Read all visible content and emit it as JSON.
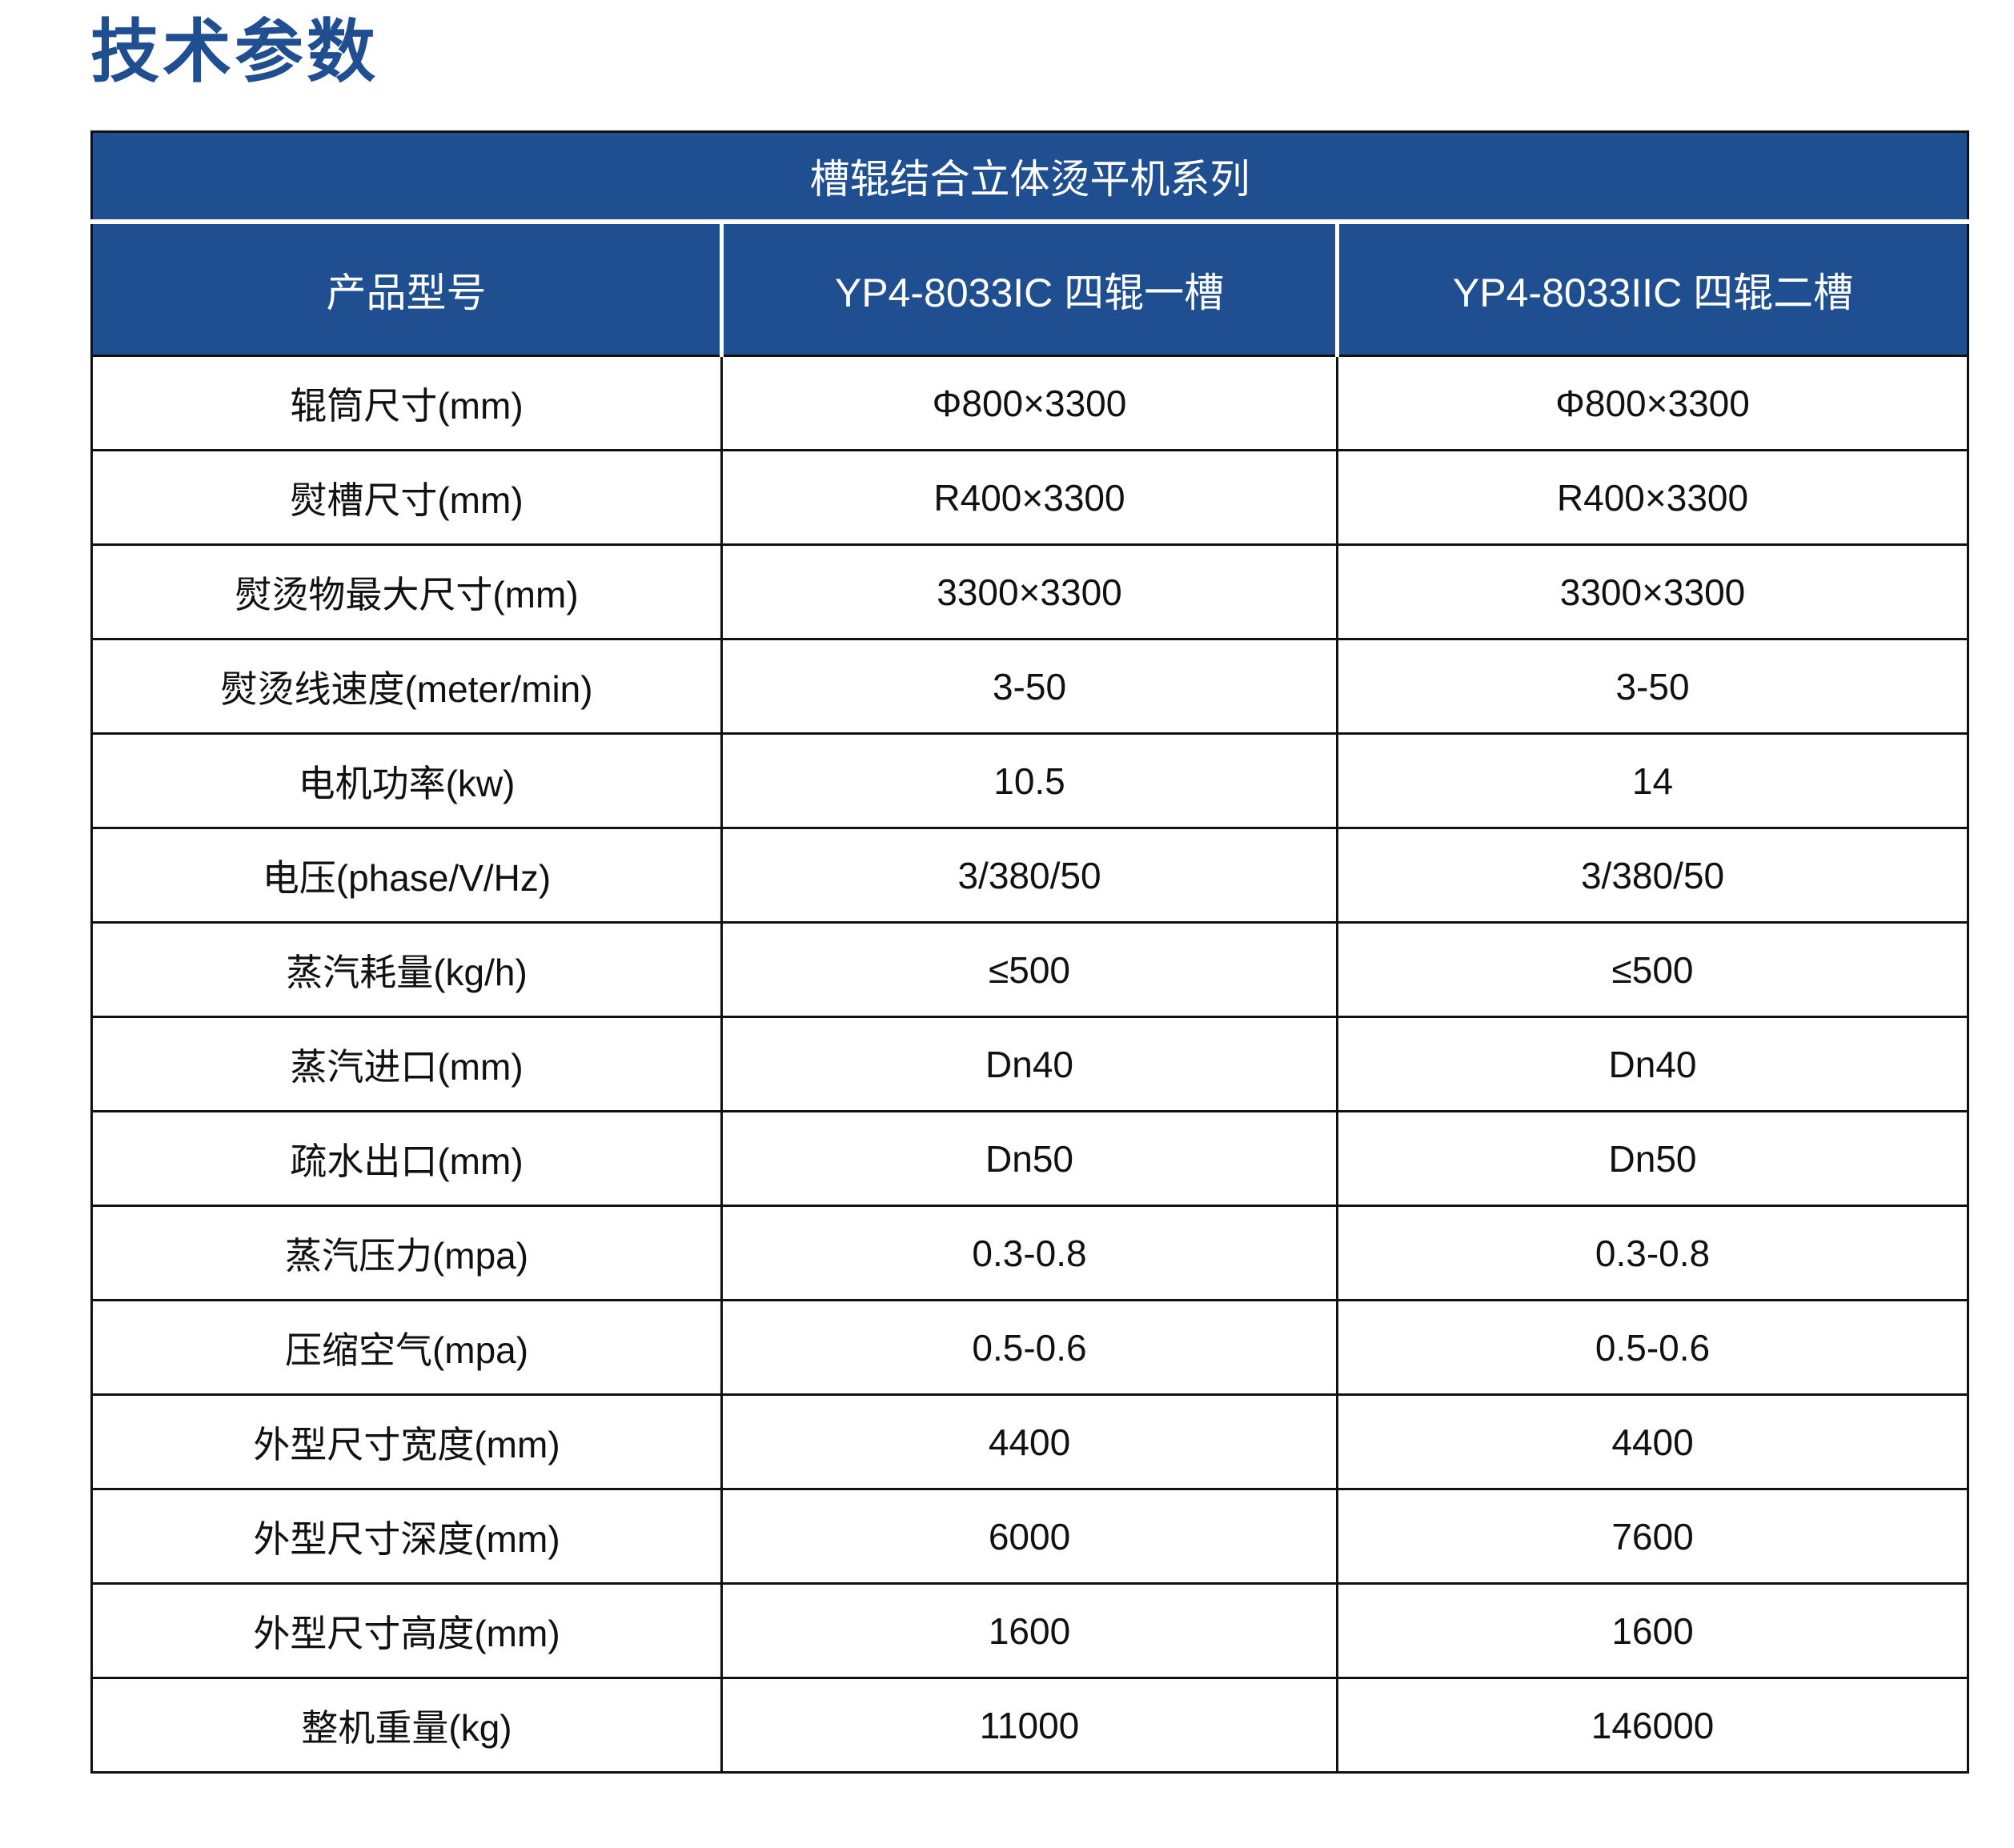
{
  "page": {
    "title": "技术参数"
  },
  "colors": {
    "accent_blue": "#1F4E91",
    "header_text": "#FFFFFF",
    "body_text": "#111111",
    "grid_line": "#111111"
  },
  "table": {
    "series_title": "槽辊结合立体烫平机系列",
    "columns": [
      "产品型号",
      "YP4-8033IC 四辊一槽",
      "YP4-8033IIC 四辊二槽"
    ],
    "rows": [
      {
        "label": "辊筒尺寸(mm)",
        "values": [
          "Φ800×3300",
          "Φ800×3300"
        ]
      },
      {
        "label": "熨槽尺寸(mm)",
        "values": [
          "R400×3300",
          "R400×3300"
        ]
      },
      {
        "label": "熨烫物最大尺寸(mm)",
        "values": [
          "3300×3300",
          "3300×3300"
        ]
      },
      {
        "label": "熨烫线速度(meter/min)",
        "values": [
          "3-50",
          "3-50"
        ]
      },
      {
        "label": "电机功率(kw)",
        "values": [
          "10.5",
          "14"
        ]
      },
      {
        "label": "电压(phase/V/Hz)",
        "values": [
          "3/380/50",
          "3/380/50"
        ]
      },
      {
        "label": "蒸汽耗量(kg/h)",
        "values": [
          "≤500",
          "≤500"
        ]
      },
      {
        "label": "蒸汽进口(mm)",
        "values": [
          "Dn40",
          "Dn40"
        ]
      },
      {
        "label": "疏水出口(mm)",
        "values": [
          "Dn50",
          "Dn50"
        ]
      },
      {
        "label": "蒸汽压力(mpa)",
        "values": [
          "0.3-0.8",
          "0.3-0.8"
        ]
      },
      {
        "label": "压缩空气(mpa)",
        "values": [
          "0.5-0.6",
          "0.5-0.6"
        ]
      },
      {
        "label": "外型尺寸宽度(mm)",
        "values": [
          "4400",
          "4400"
        ]
      },
      {
        "label": "外型尺寸深度(mm)",
        "values": [
          "6000",
          "7600"
        ]
      },
      {
        "label": "外型尺寸高度(mm)",
        "values": [
          "1600",
          "1600"
        ]
      },
      {
        "label": "整机重量(kg)",
        "values": [
          "11000",
          "146000"
        ]
      }
    ]
  }
}
